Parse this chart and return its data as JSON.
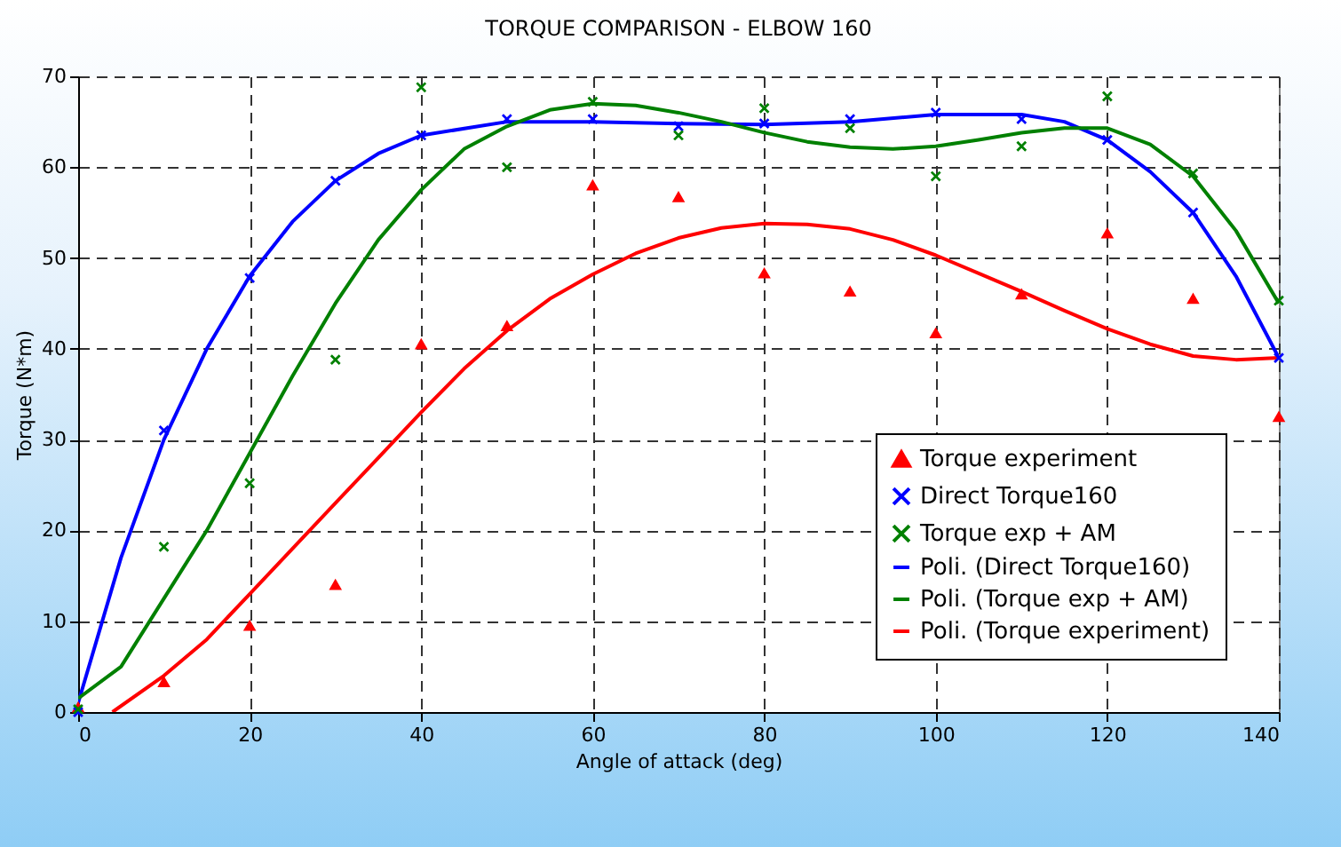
{
  "chart_data": {
    "type": "scatter",
    "title": "TORQUE COMPARISON - ELBOW 160",
    "xlabel": "Angle of attack (deg)",
    "ylabel": "Torque  (N*m)",
    "x": [
      0,
      10,
      20,
      30,
      40,
      50,
      60,
      70,
      80,
      90,
      100,
      110,
      120,
      130,
      140
    ],
    "xlim": [
      0,
      140
    ],
    "xticks": [
      0,
      20,
      40,
      60,
      80,
      100,
      120,
      140
    ],
    "ylim": [
      0,
      70
    ],
    "yticks": [
      0,
      10,
      20,
      30,
      40,
      50,
      60,
      70
    ],
    "grid": true,
    "legend": "bottom right",
    "series": [
      {
        "name": "Torque experiment",
        "marker": "triangle",
        "color": "#ff0000",
        "values": [
          0.5,
          3.3,
          9.5,
          14,
          40.5,
          42.5,
          58,
          56.7,
          48.3,
          46.3,
          41.7,
          46,
          52.7,
          45.5,
          32.5
        ]
      },
      {
        "name": "Direct Torque160",
        "marker": "cross",
        "color": "#0000ff",
        "values": [
          0,
          31,
          47.8,
          58.5,
          63.5,
          65.3,
          65.3,
          64.5,
          64.8,
          65.3,
          66,
          65.3,
          63,
          55,
          39
        ]
      },
      {
        "name": "Torque exp + AM",
        "marker": "cross",
        "color": "#008000",
        "values": [
          0.3,
          18.2,
          25.2,
          38.8,
          68.8,
          60,
          67.2,
          63.5,
          66.5,
          64.3,
          59,
          62.3,
          67.8,
          59.3,
          45.3
        ]
      },
      {
        "name": "Poli. (Direct Torque160)",
        "type": "line",
        "marker": "none",
        "color": "#0000ff",
        "x": [
          0,
          5,
          10,
          15,
          20,
          25,
          30,
          35,
          40,
          50,
          60,
          70,
          80,
          90,
          100,
          110,
          115,
          120,
          125,
          130,
          135,
          140
        ],
        "values": [
          1,
          17,
          30,
          40,
          48,
          54,
          58.5,
          61.5,
          63.5,
          65,
          65,
          64.8,
          64.7,
          65,
          65.8,
          65.8,
          65,
          63,
          59.5,
          55,
          48,
          39
        ]
      },
      {
        "name": "Poli. (Torque exp + AM)",
        "type": "line",
        "marker": "none",
        "color": "#008000",
        "x": [
          0,
          5,
          10,
          15,
          20,
          25,
          30,
          35,
          40,
          45,
          50,
          55,
          60,
          65,
          70,
          75,
          80,
          85,
          90,
          95,
          100,
          105,
          110,
          115,
          120,
          125,
          130,
          135,
          140
        ],
        "values": [
          1.5,
          5,
          12.5,
          20,
          28.5,
          37,
          45,
          52,
          57.5,
          62,
          64.5,
          66.3,
          67,
          66.8,
          66,
          65,
          63.8,
          62.8,
          62.2,
          62,
          62.3,
          63,
          63.8,
          64.3,
          64.3,
          62.5,
          59,
          53,
          45
        ]
      },
      {
        "name": "Poli. (Torque experiment)",
        "type": "line",
        "marker": "none",
        "color": "#ff0000",
        "x": [
          4,
          10,
          15,
          20,
          25,
          30,
          35,
          40,
          45,
          50,
          55,
          60,
          65,
          70,
          75,
          80,
          85,
          90,
          95,
          100,
          105,
          110,
          115,
          120,
          125,
          130,
          135,
          140
        ],
        "values": [
          0,
          4,
          8,
          13,
          18,
          23,
          28,
          33,
          37.8,
          42,
          45.5,
          48.2,
          50.5,
          52.2,
          53.3,
          53.8,
          53.7,
          53.2,
          52,
          50.3,
          48.3,
          46.3,
          44.2,
          42.2,
          40.5,
          39.2,
          38.8,
          39
        ]
      }
    ]
  }
}
